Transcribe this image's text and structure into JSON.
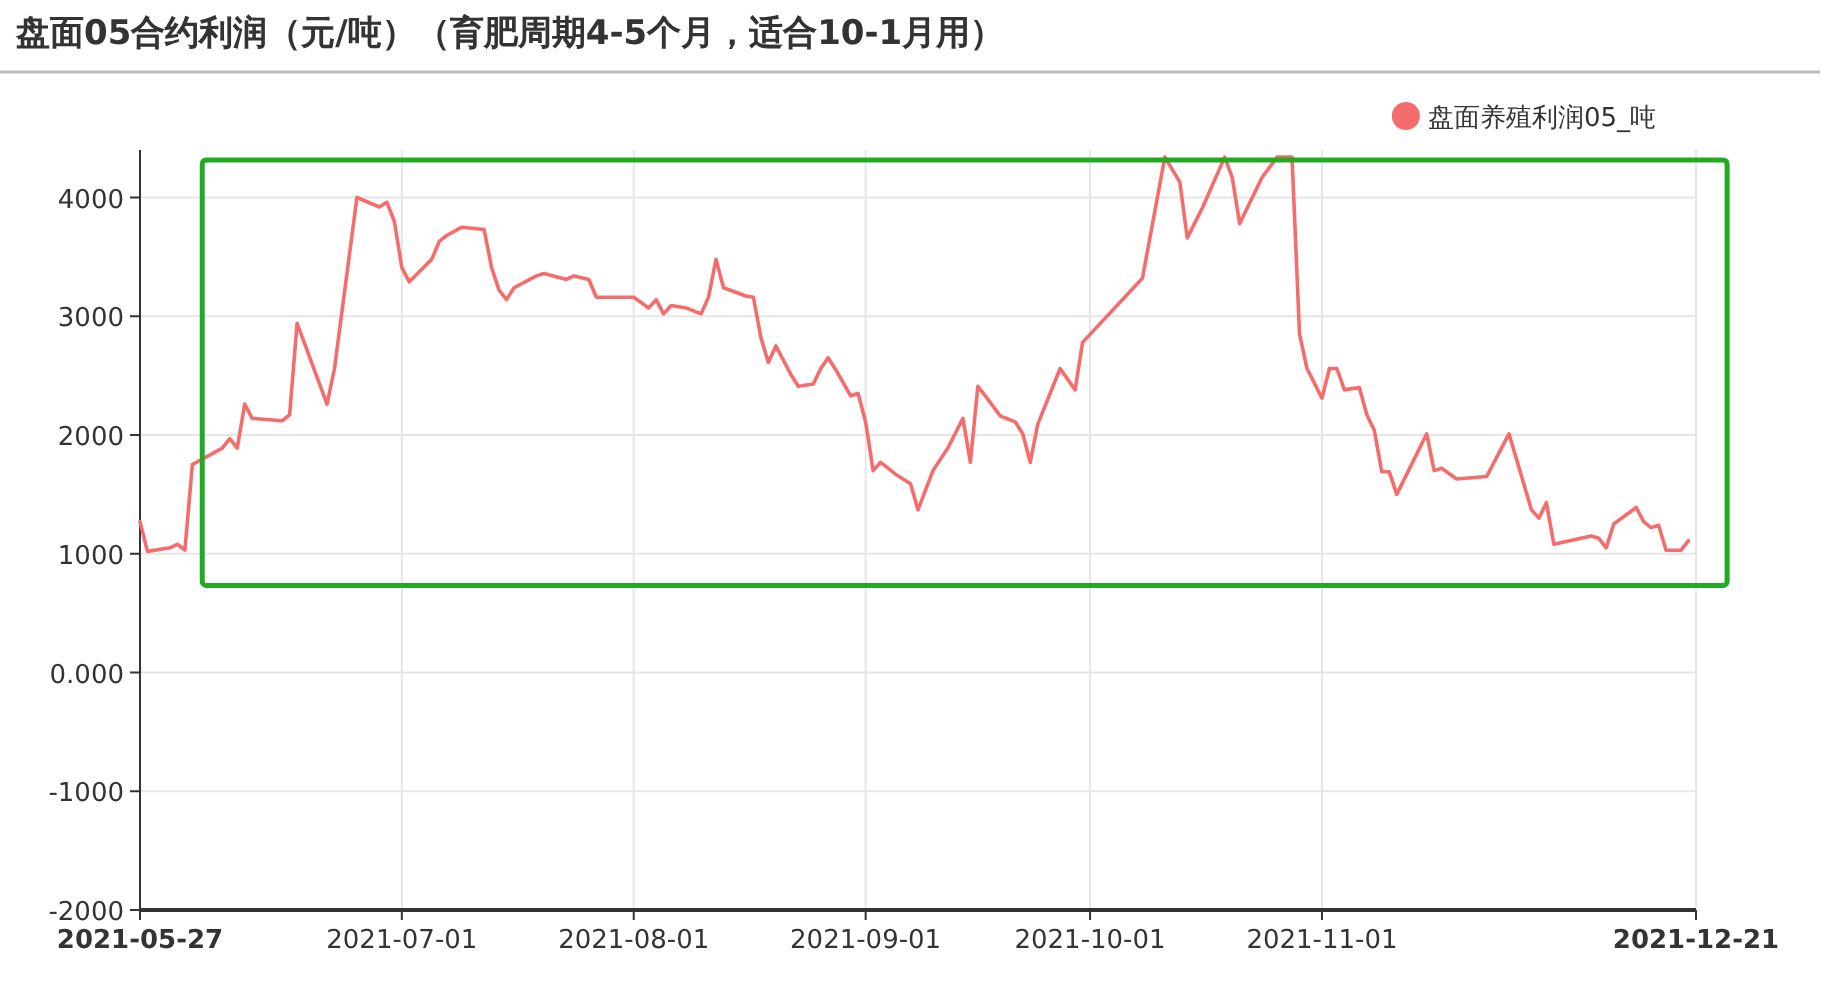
{
  "chart_data": {
    "type": "line",
    "title": "盘面05合约利润（元/吨）（育肥周期4-5个月，适合10-1月用）",
    "series": [
      {
        "name": "盘面养殖利润05_吨",
        "color": "#f56c6c",
        "x": [
          "2021-05-27",
          "2021-05-28",
          "2021-05-31",
          "2021-06-01",
          "2021-06-02",
          "2021-06-03",
          "2021-06-07",
          "2021-06-08",
          "2021-06-09",
          "2021-06-10",
          "2021-06-11",
          "2021-06-15",
          "2021-06-16",
          "2021-06-17",
          "2021-06-21",
          "2021-06-22",
          "2021-06-25",
          "2021-06-28",
          "2021-06-29",
          "2021-06-30",
          "2021-07-01",
          "2021-07-02",
          "2021-07-05",
          "2021-07-06",
          "2021-07-07",
          "2021-07-09",
          "2021-07-12",
          "2021-07-13",
          "2021-07-14",
          "2021-07-15",
          "2021-07-16",
          "2021-07-19",
          "2021-07-20",
          "2021-07-23",
          "2021-07-24",
          "2021-07-26",
          "2021-07-27",
          "2021-07-30",
          "2021-08-01",
          "2021-08-03",
          "2021-08-04",
          "2021-08-05",
          "2021-08-06",
          "2021-08-08",
          "2021-08-10",
          "2021-08-11",
          "2021-08-12",
          "2021-08-13",
          "2021-08-16",
          "2021-08-17",
          "2021-08-18",
          "2021-08-19",
          "2021-08-20",
          "2021-08-22",
          "2021-08-23",
          "2021-08-25",
          "2021-08-26",
          "2021-08-27",
          "2021-08-28",
          "2021-08-30",
          "2021-08-31",
          "2021-09-01",
          "2021-09-02",
          "2021-09-03",
          "2021-09-05",
          "2021-09-07",
          "2021-09-08",
          "2021-09-10",
          "2021-09-12",
          "2021-09-14",
          "2021-09-15",
          "2021-09-16",
          "2021-09-17",
          "2021-09-19",
          "2021-09-21",
          "2021-09-22",
          "2021-09-23",
          "2021-09-24",
          "2021-09-27",
          "2021-09-29",
          "2021-09-30",
          "2021-10-08",
          "2021-10-11",
          "2021-10-13",
          "2021-10-14",
          "2021-10-16",
          "2021-10-19",
          "2021-10-20",
          "2021-10-21",
          "2021-10-24",
          "2021-10-26",
          "2021-10-28",
          "2021-10-29",
          "2021-10-30",
          "2021-11-01",
          "2021-11-02",
          "2021-11-03",
          "2021-11-04",
          "2021-11-06",
          "2021-11-07",
          "2021-11-08",
          "2021-11-09",
          "2021-11-10",
          "2021-11-11",
          "2021-11-15",
          "2021-11-16",
          "2021-11-17",
          "2021-11-19",
          "2021-11-23",
          "2021-11-25",
          "2021-11-26",
          "2021-11-29",
          "2021-11-30",
          "2021-12-01",
          "2021-12-02",
          "2021-12-07",
          "2021-12-08",
          "2021-12-09",
          "2021-12-10",
          "2021-12-13",
          "2021-12-14",
          "2021-12-15",
          "2021-12-16",
          "2021-12-17",
          "2021-12-19",
          "2021-12-20"
        ],
        "values": [
          1270,
          1020,
          1050,
          1080,
          1030,
          1750,
          1890,
          1970,
          1890,
          2260,
          2140,
          2120,
          2170,
          2940,
          2260,
          2560,
          4000,
          3920,
          3960,
          3800,
          3410,
          3290,
          3480,
          3630,
          3680,
          3750,
          3730,
          3410,
          3220,
          3140,
          3240,
          3340,
          3360,
          3310,
          3340,
          3310,
          3160,
          3160,
          3160,
          3070,
          3140,
          3020,
          3090,
          3070,
          3020,
          3160,
          3480,
          3240,
          3170,
          3160,
          2820,
          2610,
          2750,
          2510,
          2410,
          2430,
          2560,
          2650,
          2550,
          2330,
          2350,
          2110,
          1700,
          1770,
          1670,
          1590,
          1370,
          1700,
          1890,
          2140,
          1770,
          2410,
          2330,
          2160,
          2110,
          2010,
          1770,
          2090,
          2560,
          2380,
          2780,
          3320,
          4340,
          4130,
          3660,
          3910,
          4340,
          4170,
          3780,
          4170,
          4340,
          4340,
          2850,
          2560,
          2310,
          2560,
          2560,
          2380,
          2400,
          2170,
          2040,
          1690,
          1690,
          1500,
          2010,
          1700,
          1720,
          1630,
          1650,
          1890,
          2010,
          1370,
          1300,
          1430,
          1080,
          1150,
          1130,
          1050,
          1250,
          1390,
          1270,
          1220,
          1240,
          1030,
          1030,
          1110
        ]
      }
    ],
    "xlim": [
      "2021-05-27",
      "2021-12-21"
    ],
    "xticks": [
      "2021-05-27",
      "2021-07-01",
      "2021-08-01",
      "2021-09-01",
      "2021-10-01",
      "2021-11-01",
      "2021-12-21"
    ],
    "ylim": [
      -2000,
      4400
    ],
    "yticks": [
      -2000,
      -1000,
      {
        "value": 0,
        "label": "0.000"
      },
      1000,
      2000,
      3000,
      4000
    ],
    "grid": true,
    "legend": "top right",
    "marker": "none",
    "line_style": "solid"
  }
}
